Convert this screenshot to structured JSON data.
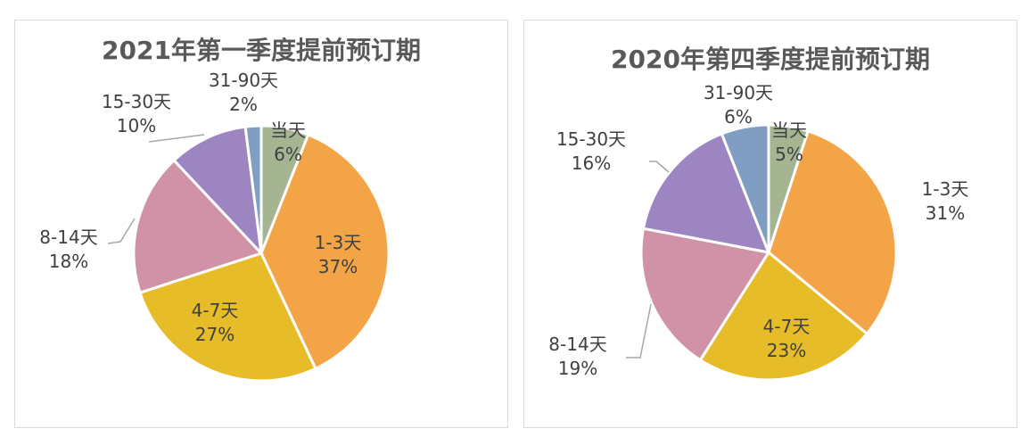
{
  "chart_data": [
    {
      "type": "pie",
      "title": "2021年第一季度提前预订期",
      "categories": [
        "当天",
        "1-3天",
        "4-7天",
        "8-14天",
        "15-30天",
        "31-90天"
      ],
      "values": [
        6,
        37,
        27,
        18,
        10,
        2
      ],
      "labels": [
        "6%",
        "37%",
        "27%",
        "18%",
        "10%",
        "2%"
      ],
      "colors": [
        "#A5B592",
        "#F3A447",
        "#E7BC29",
        "#D092A7",
        "#9C85C0",
        "#809EC2"
      ]
    },
    {
      "type": "pie",
      "title": "2020年第四季度提前预订期",
      "categories": [
        "当天",
        "1-3天",
        "4-7天",
        "8-14天",
        "15-30天",
        "31-90天"
      ],
      "values": [
        5,
        31,
        23,
        19,
        16,
        6
      ],
      "labels": [
        "5%",
        "31%",
        "23%",
        "19%",
        "16%",
        "6%"
      ],
      "colors": [
        "#A5B592",
        "#F3A447",
        "#E7BC29",
        "#D092A7",
        "#9C85C0",
        "#809EC2"
      ]
    }
  ]
}
